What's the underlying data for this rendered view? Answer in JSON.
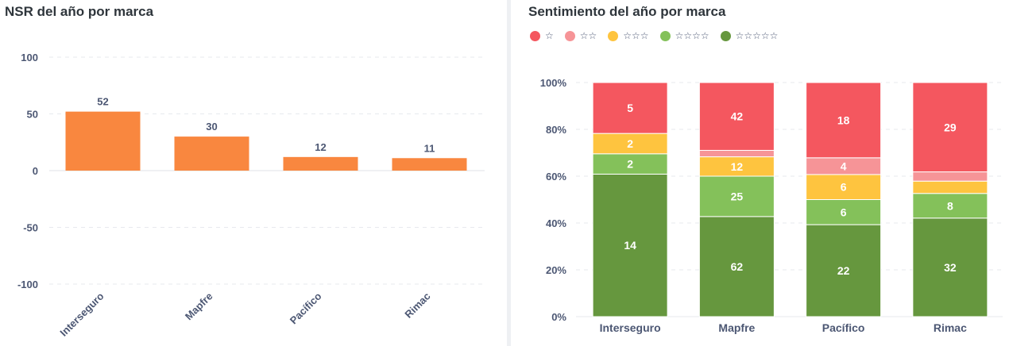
{
  "chart_data": [
    {
      "type": "bar",
      "title": "NSR del año por marca",
      "categories": [
        "Interseguro",
        "Mapfre",
        "Pacífico",
        "Rimac"
      ],
      "values": [
        52,
        30,
        12,
        11
      ],
      "y_ticks": [
        "100",
        "50",
        "0",
        "-50",
        "-100"
      ],
      "ylim": [
        -100,
        100
      ],
      "xlabel": "",
      "ylabel": "",
      "color": "#f9873f"
    },
    {
      "type": "bar",
      "stacked": "percent",
      "title": "Sentimiento del año por marca",
      "categories": [
        "Interseguro",
        "Mapfre",
        "Pacífico",
        "Rimac"
      ],
      "y_ticks": [
        "100%",
        "80%",
        "60%",
        "40%",
        "20%",
        "0%"
      ],
      "series": [
        {
          "name": "☆☆☆☆☆",
          "color": "#66973e",
          "values": [
            14,
            62,
            22,
            32
          ],
          "labels": [
            "14",
            "62",
            "22",
            "32"
          ]
        },
        {
          "name": "☆☆☆☆",
          "color": "#84c15a",
          "values": [
            2,
            25,
            6,
            8
          ],
          "labels": [
            "2",
            "25",
            "6",
            "8"
          ]
        },
        {
          "name": "☆☆☆",
          "color": "#fec43f",
          "values": [
            2,
            12,
            6,
            4
          ],
          "labels": [
            "2",
            "12",
            "6",
            ""
          ]
        },
        {
          "name": "☆☆",
          "color": "#f69497",
          "values": [
            0,
            4,
            4,
            3
          ],
          "labels": [
            "",
            "",
            "4",
            ""
          ]
        },
        {
          "name": "☆",
          "color": "#f4575f",
          "values": [
            5,
            42,
            18,
            29
          ],
          "labels": [
            "5",
            "42",
            "18",
            "29"
          ]
        }
      ],
      "legend_order": [
        "☆",
        "☆☆",
        "☆☆☆",
        "☆☆☆☆",
        "☆☆☆☆☆"
      ],
      "legend_position": "top-left"
    }
  ]
}
